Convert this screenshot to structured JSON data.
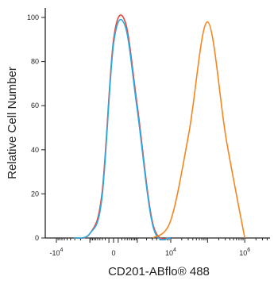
{
  "chart_data": {
    "type": "line",
    "title": "",
    "xlabel": "CD201-ABflo® 488",
    "ylabel": "Relative Cell Number",
    "ylim": [
      0,
      100
    ],
    "x_scale": "biexponential",
    "x_tick_labels": [
      "-10^4",
      "0",
      "10^4",
      "10^6"
    ],
    "y_tick_labels": [
      "0",
      "20",
      "40",
      "60",
      "80",
      "100"
    ],
    "grid": false,
    "legend": "none",
    "series": [
      {
        "color": "#e8483c",
        "x": [
          "-10^3.5",
          "-10^3",
          "-10^2.5",
          "0",
          "10^2.5",
          "10^3",
          "10^3.5",
          "10^4"
        ],
        "values": [
          0,
          2,
          20,
          90,
          98,
          60,
          6,
          0
        ]
      },
      {
        "color": "#29abe2",
        "x": [
          "-10^3.5",
          "-10^3",
          "-10^2.5",
          "0",
          "10^2.5",
          "10^3",
          "10^3.5",
          "10^4"
        ],
        "values": [
          0,
          2,
          18,
          88,
          96,
          58,
          5,
          0
        ]
      },
      {
        "color": "#f5851f",
        "x": [
          "10^3.5",
          "10^4",
          "10^4.5",
          "10^5",
          "10^5.5",
          "10^6"
        ],
        "values": [
          0,
          8,
          48,
          98,
          45,
          0
        ]
      }
    ]
  }
}
